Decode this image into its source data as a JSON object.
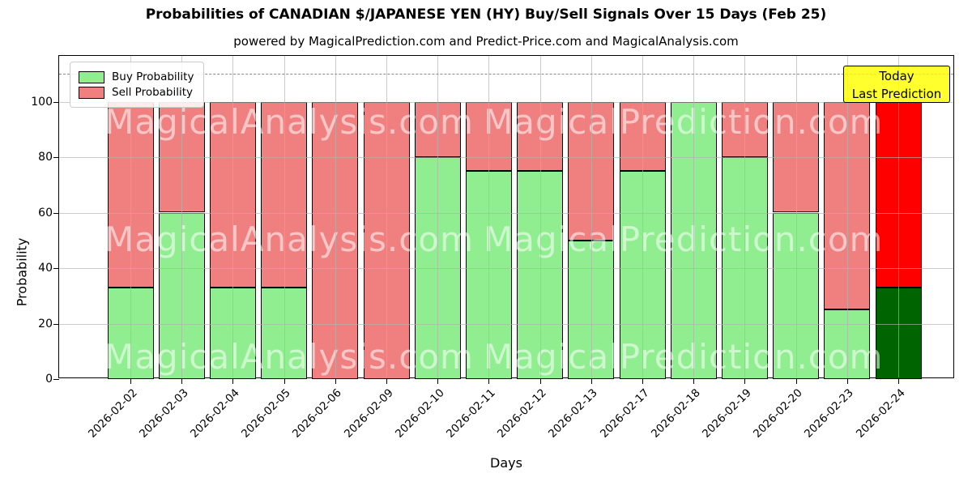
{
  "chart_data": {
    "type": "bar",
    "stacked": true,
    "title": "Probabilities of CANADIAN $/JAPANESE YEN (HY) Buy/Sell Signals Over 15 Days (Feb 25)",
    "subtitle": "powered by MagicalPrediction.com and Predict-Price.com and MagicalAnalysis.com",
    "xlabel": "Days",
    "ylabel": "Probability",
    "ylim": [
      0,
      116.5
    ],
    "yticks": [
      0,
      20,
      40,
      60,
      80,
      100
    ],
    "dashed_line_y": 110,
    "grid": true,
    "legend_position": "upper-left",
    "categories": [
      "2026-02-02",
      "2026-02-03",
      "2026-02-04",
      "2026-02-05",
      "2026-02-06",
      "2026-02-09",
      "2026-02-10",
      "2026-02-11",
      "2026-02-12",
      "2026-02-13",
      "2026-02-17",
      "2026-02-18",
      "2026-02-19",
      "2026-02-20",
      "2026-02-23",
      "2026-02-24"
    ],
    "series": [
      {
        "name": "Buy Probability",
        "color": "#90EE90",
        "values": [
          33,
          60,
          33,
          33,
          0,
          0,
          80,
          75,
          75,
          50,
          75,
          100,
          80,
          60,
          25,
          33
        ]
      },
      {
        "name": "Sell Probability",
        "color": "#F08080",
        "values": [
          67,
          40,
          67,
          67,
          100,
          100,
          20,
          25,
          25,
          50,
          25,
          0,
          20,
          40,
          75,
          67
        ]
      }
    ],
    "today_index": 15,
    "today_colors": {
      "buy": "#006400",
      "sell": "#FF0000"
    },
    "annotation": {
      "lines": [
        "Today",
        "Last Prediction"
      ],
      "bg_color": "#FFFF00"
    },
    "watermarks": {
      "left": "MagicalAnalysis.com",
      "right": "MagicalPrediction.com"
    },
    "colors": {
      "bar_edge": "#000000",
      "grid": "#b0b0b0"
    }
  }
}
